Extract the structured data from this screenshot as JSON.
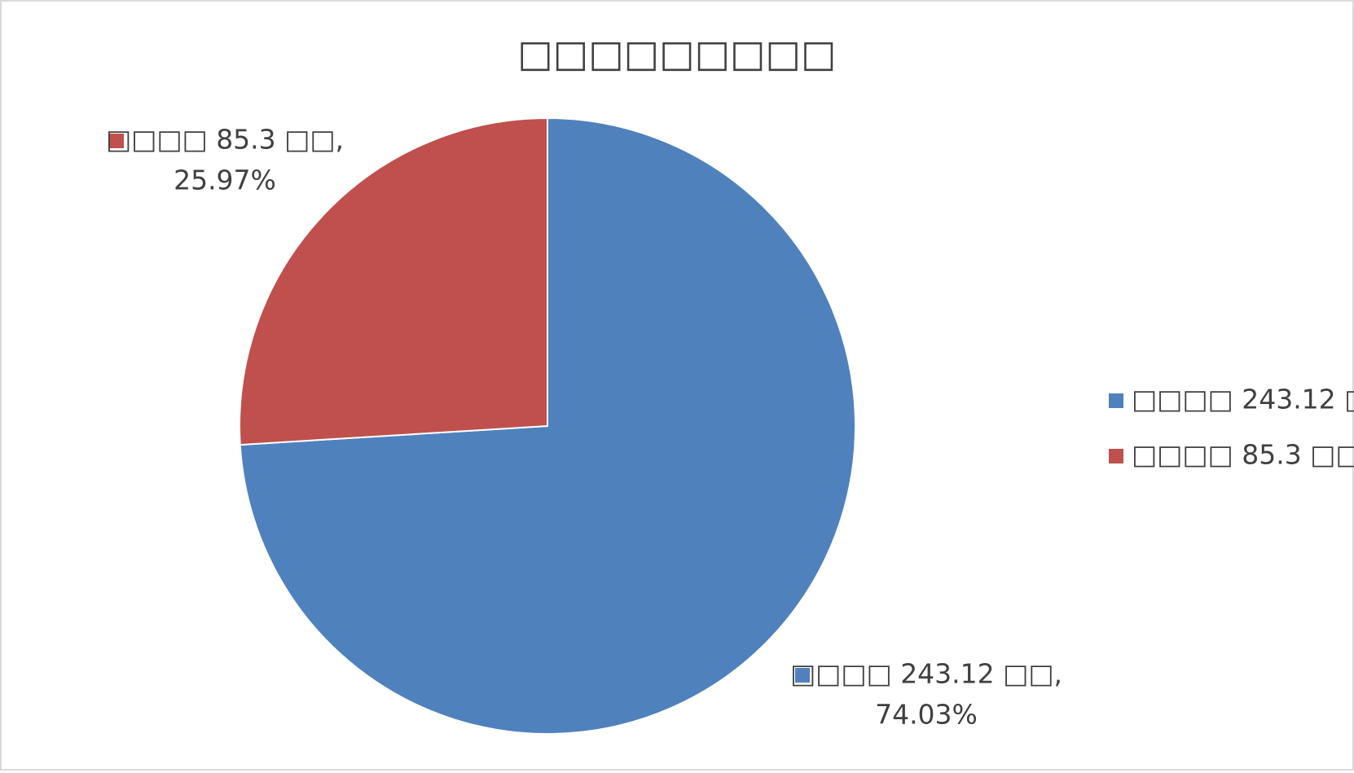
{
  "chart_data": {
    "type": "pie",
    "title": "□□□□□□□□□",
    "categories": [
      "□□□□ 243.12 □□",
      "□□□□ 85.3 □□"
    ],
    "values": [
      243.12,
      85.3
    ],
    "value_labels": [
      [
        "□□□□ 243.12 □□,",
        "74.03%"
      ],
      [
        "□□□□ 85.3 □□,",
        "25.97%"
      ]
    ],
    "colors": [
      "#4f81bd",
      "#c0504d"
    ],
    "legend": "right"
  }
}
